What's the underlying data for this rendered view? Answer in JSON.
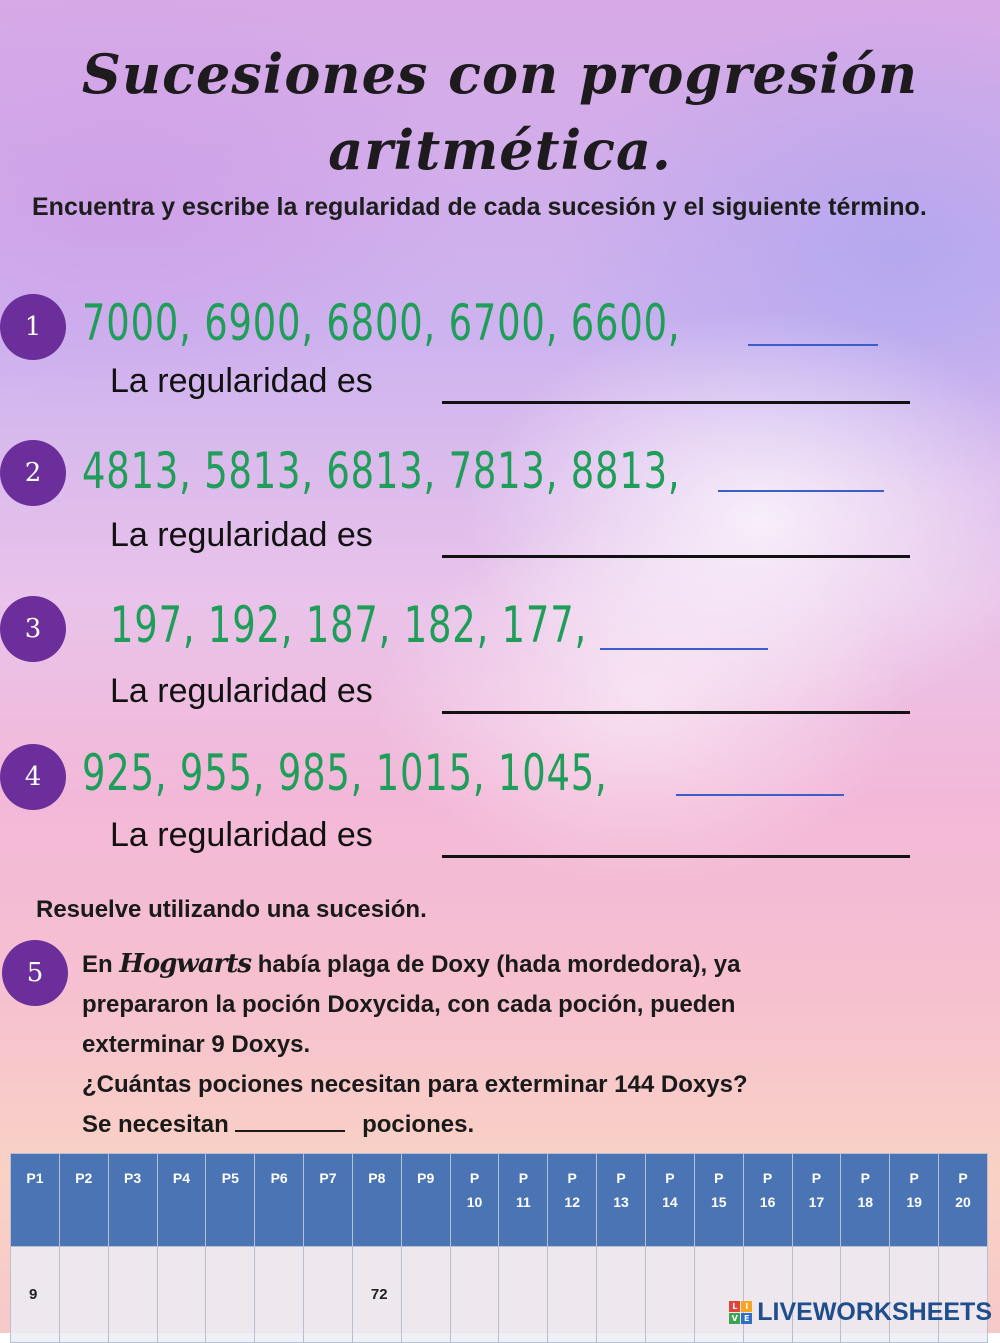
{
  "title": {
    "line1": "Sucesiones con progresión",
    "line2": "aritmética."
  },
  "instructions": "Encuentra y escribe la regularidad de cada sucesión y el siguiente término.",
  "exercises": [
    {
      "number": "1",
      "sequence": "7000,  6900,  6800,  6700,  6600,",
      "regularity_label": "La regularidad es"
    },
    {
      "number": "2",
      "sequence": "4813,  5813,  6813,  7813,  8813,",
      "regularity_label": "La regularidad es"
    },
    {
      "number": "3",
      "sequence": "197,  192,  187,  182,  177,",
      "regularity_label": "La regularidad es"
    },
    {
      "number": "4",
      "sequence": "925,  955,  985,  1015,  1045,",
      "regularity_label": "La regularidad es"
    }
  ],
  "problem_section": {
    "heading": "Resuelve utilizando  una sucesión.",
    "number": "5",
    "text_prefix": "En",
    "hogwarts": "Hogwarts",
    "text_line1_rest": "había plaga de Doxy (hada mordedora), ya",
    "text_line2": "prepararon la poción Doxycida,  con cada poción,  pueden",
    "text_line3": "exterminar 9 Doxys.",
    "question": "¿Cuántas pociones necesitan para exterminar 144 Doxys?",
    "answer_prefix": "Se necesitan",
    "answer_suffix": "pociones."
  },
  "table": {
    "headers": [
      "P1",
      "P2",
      "P3",
      "P4",
      "P5",
      "P6",
      "P7",
      "P8",
      "P9",
      "P\n10",
      "P\n11",
      "P\n12",
      "P\n13",
      "P\n14",
      "P\n15",
      "P\n16",
      "P\n17",
      "P\n18",
      "P\n19",
      "P\n20"
    ],
    "values": [
      "9",
      "",
      "",
      "",
      "",
      "",
      "",
      "72",
      "",
      "",
      "",
      "",
      "",
      "",
      "",
      "",
      "",
      "",
      "",
      ""
    ]
  },
  "brand": "LIVEWORKSHEETS",
  "brand_icon_letters": [
    "L",
    "I",
    "V",
    "E"
  ],
  "colors": {
    "badge": "#6b2e9a",
    "sequence_green": "#1e9e58",
    "table_header": "#4a74b4",
    "blank_line": "#3b5fc8"
  }
}
